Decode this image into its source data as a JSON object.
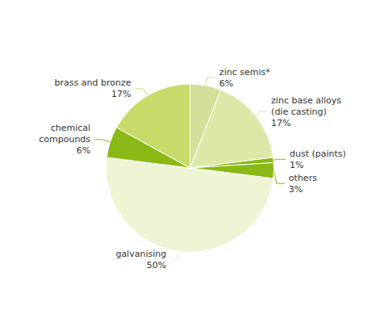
{
  "chart_data": {
    "type": "pie",
    "categories": [
      "zinc semis*",
      "zinc base alloys\n(die casting)",
      "dust (paints)",
      "others",
      "galvanising",
      "chemical\ncompounds",
      "brass and bronze"
    ],
    "values": [
      6,
      17,
      1,
      3,
      50,
      6,
      17
    ],
    "value_labels": [
      "6%",
      "17%",
      "1%",
      "3%",
      "50%",
      "6%",
      "17%"
    ],
    "colors": [
      "#d4e09a",
      "#dde8a8",
      "#8ab814",
      "#8ab814",
      "#eef4d4",
      "#8ab814",
      "#c8db6a"
    ],
    "data_labels": true,
    "legend": false
  }
}
